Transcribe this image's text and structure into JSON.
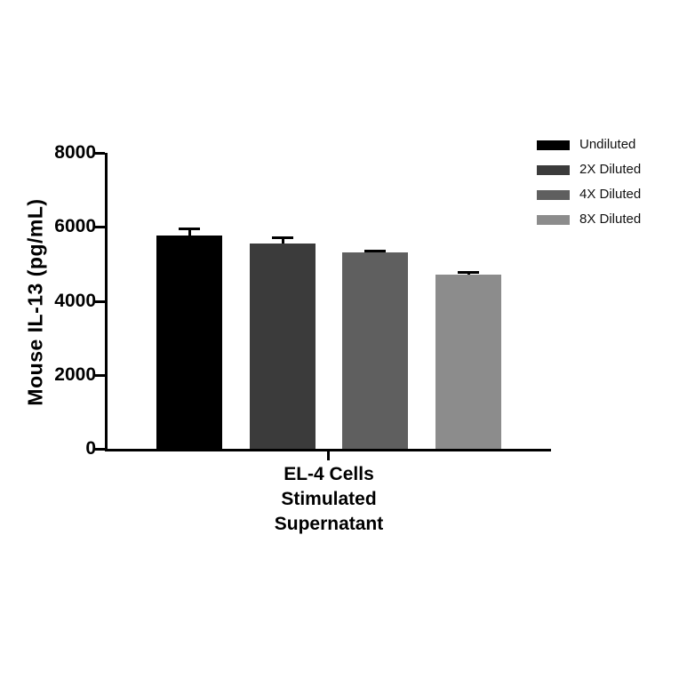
{
  "chart_data": {
    "type": "bar",
    "title": "",
    "ylabel": "Mouse IL-13 (pg/mL)",
    "xlabel_lines": [
      "EL-4 Cells",
      "Stimulated",
      "Supernatant"
    ],
    "ylim": [
      0,
      8000
    ],
    "ytick_labels": [
      "0",
      "2000",
      "4000",
      "6000",
      "8000"
    ],
    "ytick_values": [
      0,
      2000,
      4000,
      6000,
      8000
    ],
    "grid": false,
    "legend_position": "top-right",
    "series": [
      {
        "name": "Undiluted",
        "value": 5770,
        "error": 190,
        "color": "#000000"
      },
      {
        "name": "2X Diluted",
        "value": 5560,
        "error": 150,
        "color": "#3b3b3b"
      },
      {
        "name": "4X Diluted",
        "value": 5300,
        "error": 60,
        "color": "#5f5f5f"
      },
      {
        "name": "8X Diluted",
        "value": 4720,
        "error": 60,
        "color": "#8c8c8c"
      }
    ]
  }
}
